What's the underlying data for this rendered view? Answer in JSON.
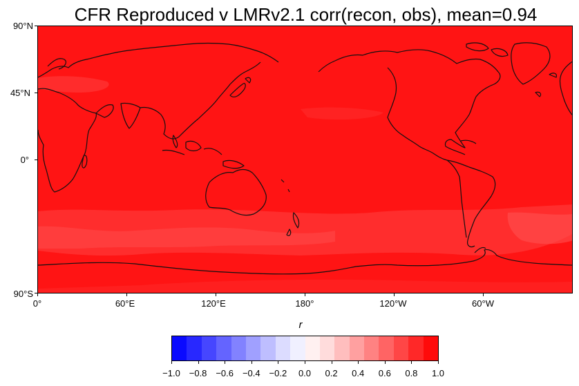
{
  "title": "CFR Reproduced v LMRv2.1 corr(recon, obs), mean=0.94",
  "map": {
    "background_color": "#ff1414",
    "lat_labels": [
      "90°N",
      "45°N",
      "0°",
      "90°S"
    ],
    "lon_labels": [
      "0°",
      "60°E",
      "120°E",
      "180°",
      "120°W",
      "60°W"
    ]
  },
  "colorbar": {
    "label": "r",
    "tick_labels": [
      "−1.0",
      "−0.8",
      "−0.6",
      "−0.4",
      "−0.2",
      "0.0",
      "0.2",
      "0.4",
      "0.6",
      "0.8",
      "1.0"
    ],
    "colors": [
      "#0a0aff",
      "#2828ff",
      "#4646ff",
      "#6464ff",
      "#8282ff",
      "#a0a0ff",
      "#bebeff",
      "#dcdcff",
      "#f0f0ff",
      "#fff0f0",
      "#ffdcdc",
      "#ffbebe",
      "#ffa0a0",
      "#ff8282",
      "#ff6464",
      "#ff4646",
      "#ff2828",
      "#ff0a0a"
    ]
  }
}
